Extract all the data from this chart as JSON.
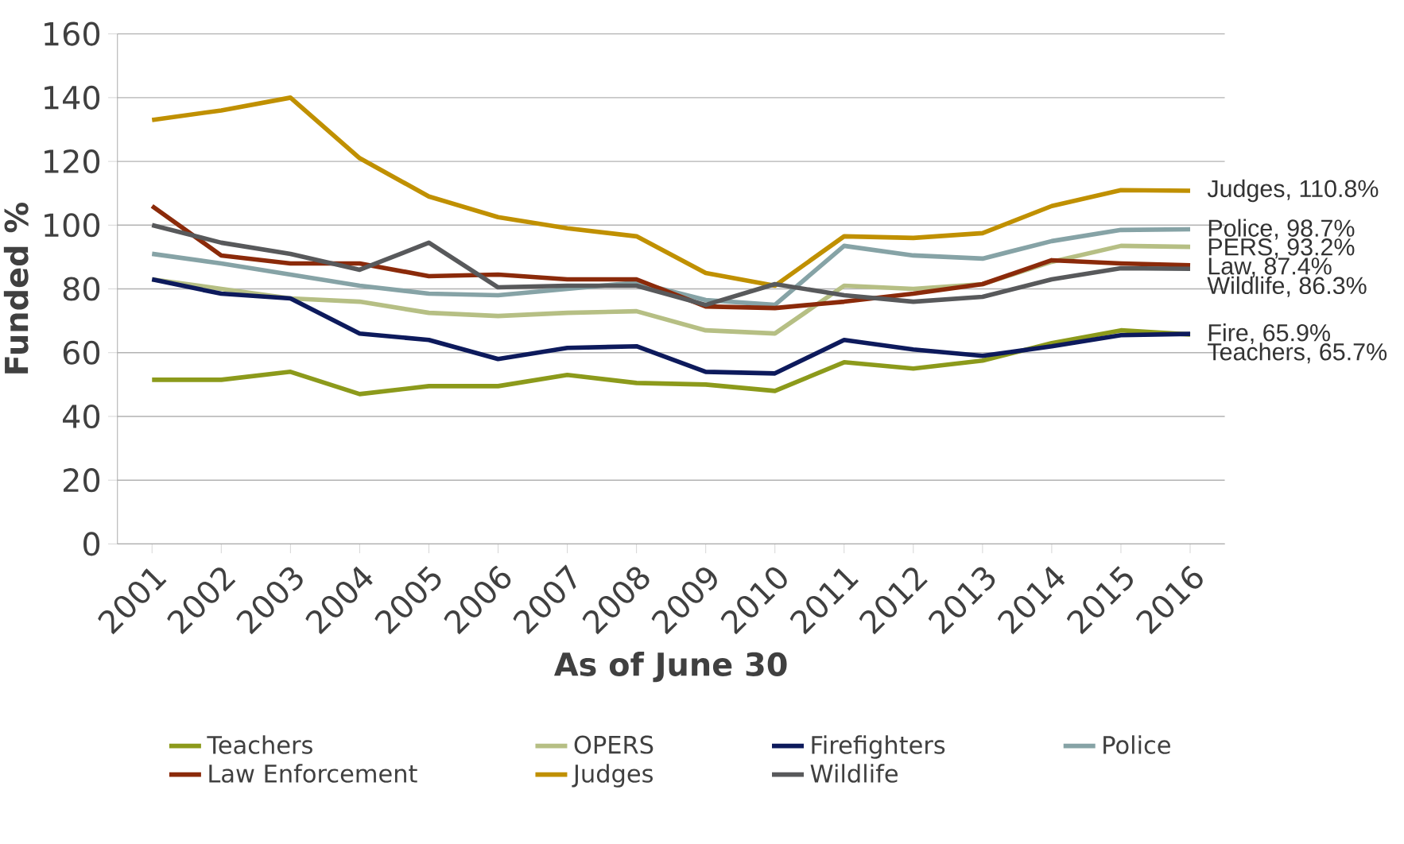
{
  "chart_data": {
    "type": "line",
    "xlabel": "As of June 30",
    "ylabel": "Funded %",
    "categories": [
      "2001",
      "2002",
      "2003",
      "2004",
      "2005",
      "2006",
      "2007",
      "2008",
      "2009",
      "2010",
      "2011",
      "2012",
      "2013",
      "2014",
      "2015",
      "2016"
    ],
    "ylim": [
      0,
      160
    ],
    "yticks": [
      0,
      20,
      40,
      60,
      80,
      100,
      120,
      140,
      160
    ],
    "grid": "y",
    "legend": "bottom",
    "line_style": "solid",
    "marker": "none",
    "series": [
      {
        "name": "Teachers",
        "color": "#8c9a1b",
        "values": [
          51.5,
          51.5,
          54,
          47,
          49.5,
          49.5,
          53,
          50.5,
          50,
          48,
          57,
          55,
          57.5,
          63,
          67,
          65.7
        ]
      },
      {
        "name": "OPERS",
        "color": "#b6bf84",
        "values": [
          83,
          80,
          77,
          76,
          72.5,
          71.5,
          72.5,
          73,
          67,
          66,
          81,
          80,
          81.5,
          88.5,
          93.5,
          93.2
        ]
      },
      {
        "name": "Firefighters",
        "color": "#0d1a5c",
        "values": [
          83,
          78.5,
          77,
          66,
          64,
          58,
          61.5,
          62,
          54,
          53.5,
          64,
          61,
          59,
          62,
          65.5,
          65.9
        ]
      },
      {
        "name": "Police",
        "color": "#86a3a6",
        "values": [
          91,
          88,
          84.5,
          81,
          78.5,
          78,
          80,
          82,
          76.5,
          75,
          93.5,
          90.5,
          89.5,
          95,
          98.5,
          98.7
        ]
      },
      {
        "name": "Law Enforcement",
        "color": "#8b2a0a",
        "values": [
          106,
          90.5,
          88,
          88,
          84,
          84.5,
          83,
          83,
          74.5,
          74,
          76,
          78.5,
          81.5,
          89,
          88,
          87.4
        ]
      },
      {
        "name": "Judges",
        "color": "#c09000",
        "values": [
          133,
          136,
          140,
          121,
          109,
          102.5,
          99,
          96.5,
          85,
          81,
          96.5,
          96,
          97.5,
          106,
          111,
          110.8
        ]
      },
      {
        "name": "Wildlife",
        "color": "#58595b",
        "values": [
          100,
          94.5,
          91,
          86,
          94.5,
          80.5,
          81,
          81,
          75,
          81.5,
          78,
          76,
          77.5,
          83,
          86.5,
          86.3
        ]
      }
    ],
    "annotations": [
      {
        "text": "Judges, 110.8%",
        "x": "2016",
        "y": 110.8
      },
      {
        "text": "Police, 98.7%",
        "x": "2016",
        "y": 98.7
      },
      {
        "text": "PERS, 93.2%",
        "x": "2016",
        "y": 93.2
      },
      {
        "text": "Law, 87.4%",
        "x": "2016",
        "y": 87.4
      },
      {
        "text": "Wildlife, 86.3%",
        "x": "2016",
        "y": 86.3
      },
      {
        "text": "Fire, 65.9%",
        "x": "2016",
        "y": 65.9
      },
      {
        "text": "Teachers, 65.7%",
        "x": "2016",
        "y": 65.7
      }
    ]
  }
}
